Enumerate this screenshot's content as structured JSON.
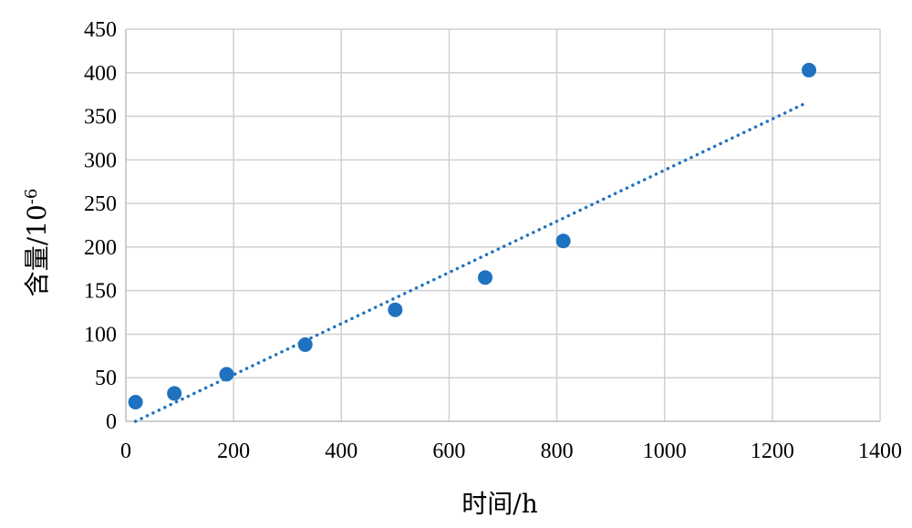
{
  "chart_data": {
    "type": "scatter",
    "title": "",
    "xlabel": "时间/h",
    "ylabel_main": "含量/10",
    "ylabel_sup": "-6",
    "xlim": [
      0,
      1400
    ],
    "ylim": [
      0,
      450
    ],
    "x_ticks": [
      0,
      200,
      400,
      600,
      800,
      1000,
      1200,
      1400
    ],
    "y_ticks": [
      0,
      50,
      100,
      150,
      200,
      250,
      300,
      350,
      400,
      450
    ],
    "grid": true,
    "series": [
      {
        "points": [
          {
            "x": 18,
            "y": 22
          },
          {
            "x": 90,
            "y": 32
          },
          {
            "x": 187,
            "y": 54
          },
          {
            "x": 333,
            "y": 88
          },
          {
            "x": 500,
            "y": 128
          },
          {
            "x": 667,
            "y": 165
          },
          {
            "x": 812,
            "y": 207
          },
          {
            "x": 1268,
            "y": 403
          }
        ],
        "color": "#1f72bf"
      }
    ],
    "trendline": {
      "style": "dotted",
      "color": "#1f72bf",
      "from": {
        "x": 18,
        "y": 0
      },
      "to": {
        "x": 1265,
        "y": 366
      }
    }
  }
}
